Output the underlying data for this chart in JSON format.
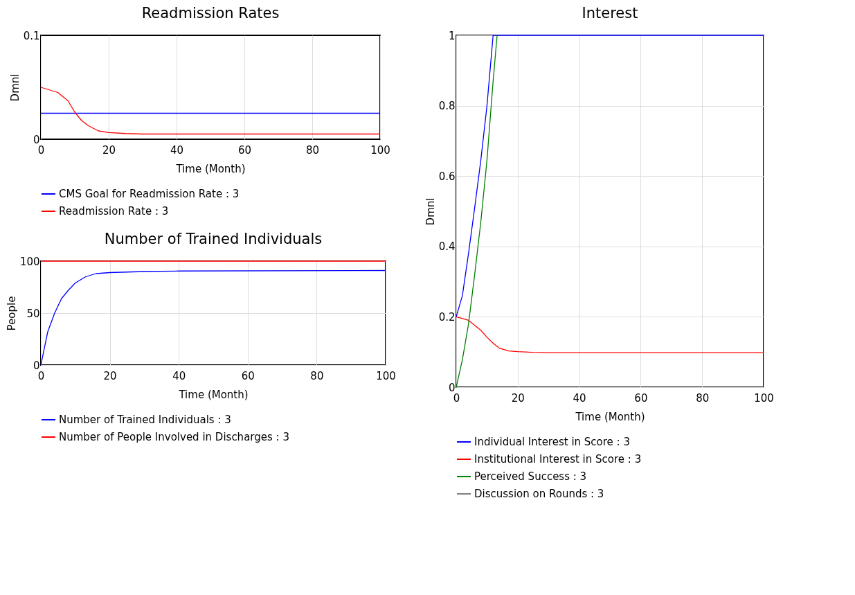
{
  "chart_data": [
    {
      "type": "line",
      "title": "Readmission Rates",
      "xlabel": "Time (Month)",
      "ylabel": "Dmnl",
      "xlim": [
        0,
        100
      ],
      "ylim": [
        0,
        0.1
      ],
      "xticks": [
        0,
        20,
        40,
        60,
        80,
        100
      ],
      "yticks": [
        0,
        0.1
      ],
      "grid": "x",
      "legend": "bottom",
      "series": [
        {
          "name": "CMS Goal for Readmission Rate : 3",
          "color": "#0000ff",
          "x": [
            0,
            100
          ],
          "values": [
            0.025,
            0.025
          ]
        },
        {
          "name": "Readmission Rate : 3",
          "color": "#ff0000",
          "x": [
            0,
            5,
            8,
            10,
            12,
            14,
            17,
            20,
            25,
            30,
            100
          ],
          "values": [
            0.05,
            0.045,
            0.037,
            0.026,
            0.018,
            0.013,
            0.008,
            0.0064,
            0.0055,
            0.005,
            0.005
          ]
        }
      ]
    },
    {
      "type": "line",
      "title": "Number of Trained Individuals",
      "xlabel": "Time (Month)",
      "ylabel": "People",
      "xlim": [
        0,
        100
      ],
      "ylim": [
        0,
        100
      ],
      "xticks": [
        0,
        20,
        40,
        60,
        80,
        100
      ],
      "yticks": [
        0,
        50,
        100
      ],
      "grid": true,
      "legend": "bottom",
      "series": [
        {
          "name": "Number of Trained Individuals : 3",
          "color": "#0000ff",
          "x": [
            0,
            2,
            4,
            6,
            8,
            10,
            13,
            16,
            20,
            30,
            40,
            100
          ],
          "values": [
            0,
            32,
            50,
            64,
            72,
            79,
            85,
            88,
            89,
            90,
            90.5,
            91
          ]
        },
        {
          "name": "Number of People Involved in Discharges : 3",
          "color": "#ff0000",
          "x": [
            0,
            100
          ],
          "values": [
            100,
            100
          ]
        }
      ]
    },
    {
      "type": "line",
      "title": "Interest",
      "xlabel": "Time (Month)",
      "ylabel": "Dmnl",
      "xlim": [
        0,
        100
      ],
      "ylim": [
        0,
        1
      ],
      "xticks": [
        0,
        20,
        40,
        60,
        80,
        100
      ],
      "yticks": [
        0,
        0.2,
        0.4,
        0.6,
        0.8,
        1
      ],
      "grid": true,
      "legend": "bottom",
      "series": [
        {
          "name": "Individual Interest in Score : 3",
          "color": "#0000ff",
          "x": [
            0,
            2,
            4,
            6,
            8,
            10,
            12,
            100
          ],
          "values": [
            0.2,
            0.26,
            0.38,
            0.51,
            0.645,
            0.8,
            1,
            1
          ]
        },
        {
          "name": "Institutional Interest in Score : 3",
          "color": "#ff0000",
          "x": [
            0,
            4,
            8,
            10,
            12,
            14,
            17,
            20,
            25,
            30,
            100
          ],
          "values": [
            0.2,
            0.19,
            0.162,
            0.142,
            0.125,
            0.111,
            0.103,
            0.101,
            0.099,
            0.098,
            0.098
          ]
        },
        {
          "name": "Perceived Success : 3",
          "color": "#008000",
          "x": [
            0,
            2,
            4,
            6,
            8,
            10,
            12,
            13.3
          ],
          "values": [
            0,
            0.078,
            0.18,
            0.32,
            0.47,
            0.645,
            0.87,
            1
          ]
        },
        {
          "name": "Discussion on Rounds : 3",
          "color": "#808080"
        }
      ]
    }
  ]
}
